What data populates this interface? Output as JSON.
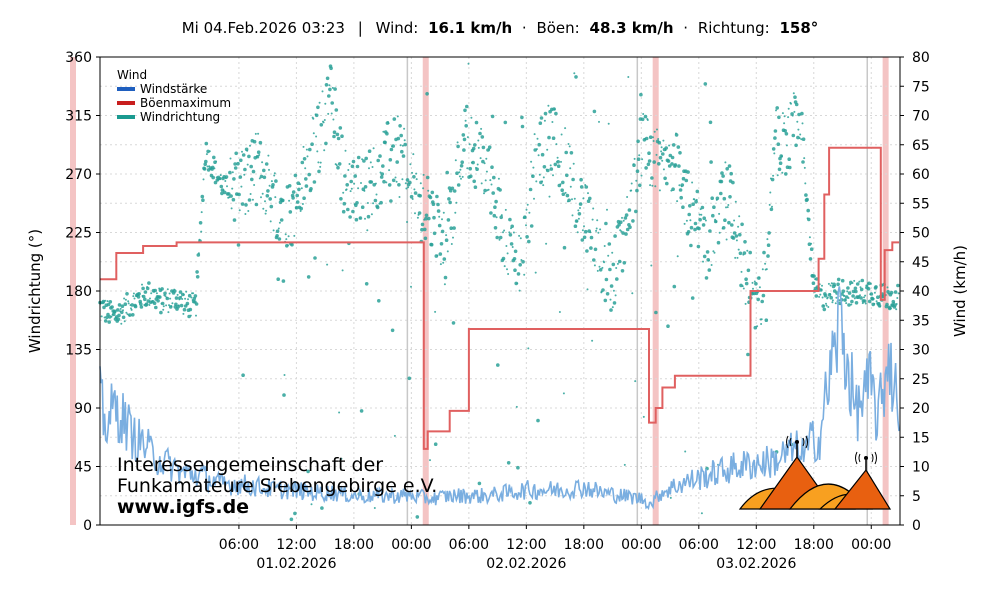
{
  "header": {
    "datetime": "Mi 04.Feb.2026 03:23",
    "sep": "|",
    "wind_label": "Wind:",
    "wind_value": "16.1 km/h",
    "dot1": "·",
    "gust_label": "Böen:",
    "gust_value": "48.3 km/h",
    "dot2": "·",
    "dir_label": "Richtung:",
    "dir_value": "158°"
  },
  "organization": {
    "line1": "Interessengemeinschaft der",
    "line2": "Funkamateure Siebengebirge e.V.",
    "url": "www.igfs.de"
  },
  "colors": {
    "wind": "#7aaee0",
    "gust": "#e06060",
    "direction": "#2aa198",
    "highlight": "#f4c4c4",
    "grid": "#d8d8d8",
    "logo_light": "#f8a020",
    "logo_dark": "#e86010"
  },
  "icons": {
    "logo": "mountains-antenna-logo"
  },
  "chart_data": {
    "type": "line",
    "legend": {
      "title": "Wind",
      "position": "top-left",
      "items": [
        {
          "label": "Windstärke",
          "color": "#1f5fbf"
        },
        {
          "label": "Böenmaximum",
          "color": "#c81e1e"
        },
        {
          "label": "Windrichtung",
          "color": "#1a9a90"
        }
      ]
    },
    "xlabel": "",
    "ylabel_left": "Windrichtung (°)",
    "ylabel_right": "Wind (km/h)",
    "x_range_hours": [
      -8.5,
      51.4
    ],
    "ylim_left": [
      0,
      360
    ],
    "ylim_right": [
      0,
      80
    ],
    "grid": true,
    "x_ticks": [
      {
        "h": 6,
        "label": "06:00"
      },
      {
        "h": 12,
        "label": "12:00"
      },
      {
        "h": 18,
        "label": "18:00"
      },
      {
        "h": 24,
        "label": "00:00"
      },
      {
        "h": 30,
        "label": "06:00"
      },
      {
        "h": 36,
        "label": "12:00"
      },
      {
        "h": 42,
        "label": "18:00"
      },
      {
        "h": 48,
        "label": "00:00"
      },
      {
        "h": 54,
        "label": "06:00"
      },
      {
        "h": 60,
        "label": "12:00"
      },
      {
        "h": 66,
        "label": "18:00"
      },
      {
        "h": 72,
        "label": "00:00"
      }
    ],
    "date_labels": [
      {
        "h": 12,
        "label": "01.02.2026"
      },
      {
        "h": 36,
        "label": "02.02.2026"
      },
      {
        "h": 60,
        "label": "03.02.2026"
      }
    ],
    "y_ticks_left": [
      0,
      45,
      90,
      135,
      180,
      225,
      270,
      315,
      360
    ],
    "y_ticks_right": [
      0,
      5,
      10,
      15,
      20,
      25,
      30,
      35,
      40,
      45,
      50,
      55,
      60,
      65,
      70,
      75,
      80
    ],
    "highlight_bands": [
      -8.5,
      25.5,
      49.5,
      73.5
    ],
    "midnight_markers": [
      24,
      48,
      72
    ],
    "gust_steps": [
      [
        -8.5,
        42
      ],
      [
        -6.8,
        46.5
      ],
      [
        -4.0,
        47.7
      ],
      [
        -0.5,
        48.3
      ],
      [
        25.0,
        48.3
      ],
      [
        25.3,
        13
      ],
      [
        25.7,
        16
      ],
      [
        28.0,
        19.5
      ],
      [
        30.0,
        33.5
      ],
      [
        48.3,
        33.5
      ],
      [
        48.8,
        17.5
      ],
      [
        49.5,
        20
      ],
      [
        50.2,
        23.5
      ],
      [
        51.5,
        25.5
      ],
      [
        58.5,
        25.5
      ],
      [
        59.4,
        40
      ],
      [
        66.0,
        40
      ],
      [
        66.5,
        45.5
      ],
      [
        67.1,
        56.5
      ],
      [
        67.6,
        64.5
      ],
      [
        72.5,
        64.5
      ],
      [
        73.0,
        38.5
      ],
      [
        73.4,
        47
      ],
      [
        74.2,
        48.3
      ],
      [
        74.9,
        48.3
      ]
    ],
    "wind_profile": [
      [
        -8.5,
        22
      ],
      [
        -8.0,
        17
      ],
      [
        -7.0,
        20
      ],
      [
        -6.0,
        18
      ],
      [
        -5.0,
        15
      ],
      [
        -4.0,
        14
      ],
      [
        -3.0,
        12
      ],
      [
        -2.0,
        11
      ],
      [
        -1.0,
        10
      ],
      [
        0.0,
        9
      ],
      [
        2.0,
        8.5
      ],
      [
        4.0,
        7
      ],
      [
        6.0,
        7
      ],
      [
        8.0,
        6.5
      ],
      [
        10.0,
        6
      ],
      [
        12.0,
        6
      ],
      [
        14.0,
        5.5
      ],
      [
        16.0,
        5.5
      ],
      [
        18.0,
        5
      ],
      [
        20.0,
        5
      ],
      [
        22.0,
        5
      ],
      [
        24.0,
        5
      ],
      [
        26.0,
        4.5
      ],
      [
        28.0,
        5
      ],
      [
        30.0,
        5
      ],
      [
        32.0,
        5
      ],
      [
        34.0,
        5.5
      ],
      [
        36.0,
        6
      ],
      [
        38.0,
        6
      ],
      [
        40.0,
        6
      ],
      [
        42.0,
        6.5
      ],
      [
        44.0,
        5.5
      ],
      [
        46.0,
        5
      ],
      [
        48.0,
        4.5
      ],
      [
        49.0,
        3.5
      ],
      [
        50.0,
        5.5
      ],
      [
        52.0,
        7
      ],
      [
        54.0,
        8
      ],
      [
        56.0,
        9
      ],
      [
        58.0,
        10
      ],
      [
        60.0,
        10.5
      ],
      [
        62.0,
        11
      ],
      [
        63.0,
        12
      ],
      [
        64.0,
        13
      ],
      [
        65.0,
        12
      ],
      [
        66.0,
        15
      ],
      [
        66.5,
        14
      ],
      [
        67.0,
        19
      ],
      [
        67.6,
        25
      ],
      [
        68.2,
        30
      ],
      [
        68.8,
        36
      ],
      [
        69.2,
        30
      ],
      [
        69.8,
        25
      ],
      [
        70.4,
        19
      ],
      [
        71.2,
        22
      ],
      [
        72.0,
        24
      ],
      [
        72.6,
        18
      ],
      [
        73.2,
        22
      ],
      [
        73.8,
        30
      ],
      [
        74.3,
        24
      ],
      [
        74.9,
        20
      ]
    ],
    "direction_profile": [
      [
        -8.5,
        168
      ],
      [
        -7.0,
        160
      ],
      [
        -5.0,
        172
      ],
      [
        -3.5,
        178
      ],
      [
        -2.0,
        172
      ],
      [
        -0.5,
        175
      ],
      [
        0.5,
        170
      ],
      [
        1.5,
        168
      ],
      [
        2.5,
        288
      ],
      [
        4.5,
        258
      ],
      [
        6.0,
        262
      ],
      [
        8.0,
        275
      ],
      [
        10.0,
        248
      ],
      [
        11.5,
        238
      ],
      [
        13.5,
        282
      ],
      [
        14.5,
        300
      ],
      [
        15.5,
        332
      ],
      [
        17.0,
        262
      ],
      [
        19.0,
        256
      ],
      [
        21.5,
        282
      ],
      [
        23.0,
        288
      ],
      [
        24.5,
        250
      ],
      [
        26.0,
        238
      ],
      [
        27.5,
        212
      ],
      [
        29.5,
        300
      ],
      [
        32.0,
        272
      ],
      [
        34.0,
        215
      ],
      [
        35.5,
        205
      ],
      [
        37.0,
        280
      ],
      [
        38.5,
        300
      ],
      [
        40.0,
        280
      ],
      [
        41.5,
        250
      ],
      [
        43.5,
        205
      ],
      [
        45.0,
        190
      ],
      [
        46.5,
        230
      ],
      [
        48.0,
        295
      ],
      [
        49.5,
        275
      ],
      [
        51.0,
        288
      ],
      [
        53.0,
        245
      ],
      [
        55.0,
        215
      ],
      [
        57.0,
        258
      ],
      [
        59.0,
        190
      ],
      [
        60.5,
        168
      ],
      [
        62.0,
        292
      ],
      [
        63.5,
        300
      ],
      [
        64.5,
        320
      ],
      [
        66.0,
        182
      ],
      [
        67.0,
        175
      ],
      [
        68.5,
        180
      ],
      [
        70.0,
        178
      ],
      [
        72.0,
        180
      ],
      [
        73.5,
        175
      ],
      [
        74.9,
        176
      ]
    ]
  }
}
